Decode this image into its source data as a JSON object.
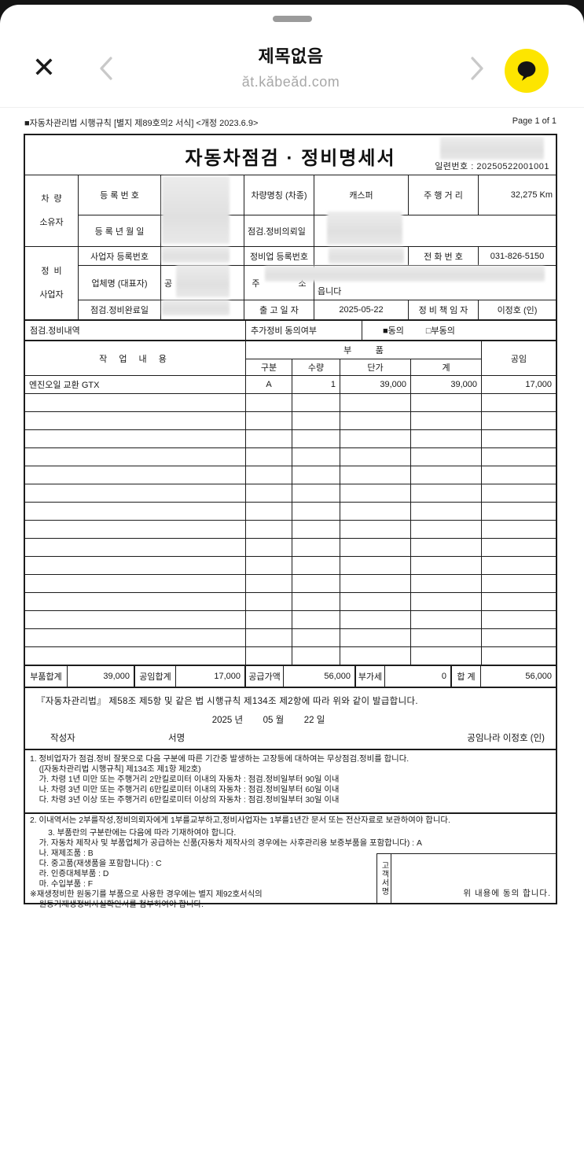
{
  "browser": {
    "title": "제목없음",
    "url": "ăt.kăbeăd.com",
    "close_glyph": "✕"
  },
  "doc": {
    "form_note": "■자동차관리법 시행규칙 [별지 제89호의2 서식] <개정 2023.6.9>",
    "page_indicator": "Page 1 of 1",
    "title": "자동차점검 · 정비명세서",
    "serial_label": "일련번호 : ",
    "serial_value": "20250522001001",
    "owner": {
      "group_label": "차  량\n소유자",
      "reg_no_label": "등 록 번 호",
      "model_label": "차량명칭 (차종)",
      "model_value": "캐스퍼",
      "mileage_label": "주 행 거 리",
      "mileage_value": "32,275 Km",
      "reg_date_label": "등 록 년 월 일",
      "request_date_label": "점검.정비의뢰일"
    },
    "shop": {
      "group_label": "정  비\n사업자",
      "biz_no_label": "사업자 등록번호",
      "repair_no_label": "정비업 등록번호",
      "phone_label": "전 화 번 호",
      "phone_value": "031-826-5150",
      "name_label": "업체명 (대표자)",
      "name_fragment": "공",
      "addr_label": "주                소",
      "addr_fragment": "읍니다",
      "complete_date_label": "점검.정비완료일",
      "out_date_label": "출 고 일 자",
      "out_date_value": "2025-05-22",
      "manager_label": "정 비 책 임 자",
      "manager_value": "이정호 (인)"
    },
    "detail_header": {
      "left": "점검.정비내역",
      "mid": "추가정비 동의여부",
      "agree": "■동의",
      "disagree": "□부동의"
    },
    "parts_table": {
      "work_label": "작 업 내 용",
      "parts_label": "부          품",
      "labor_label": "공임",
      "sub_type": "구분",
      "sub_qty": "수량",
      "sub_unit": "단가",
      "sub_total": "계",
      "row1": {
        "work": "엔진오일 교환 GTX",
        "type": "A",
        "qty": "1",
        "unit_price": "39,000",
        "total": "39,000",
        "labor": "17,000"
      },
      "empty_row_count": 15
    },
    "totals": {
      "parts_label": "부품합계",
      "parts_value": "39,000",
      "labor_label": "공임합계",
      "labor_value": "17,000",
      "supply_label": "공급가액",
      "supply_value": "56,000",
      "vat_label": "부가세",
      "vat_value": "0",
      "grand_label": "합 계",
      "grand_value": "56,000"
    },
    "certificate": {
      "line1": "『자동차관리법』  제58조 제5항 및 같은 법 시행규칙 제134조 제2항에 따라 위와 같이 발급합니다.",
      "date_line": "2025 년        05 월        22 일",
      "writer_label": "작성자",
      "sign_label": "서명",
      "shop_sign": "공임나라 이정호  (인)"
    },
    "note1": "1. 정비업자가 점검.정비 잘못으로 다음 구분에 따른 기간중 발생하는 고장등에 대하여는 무상점검.정비를 합니다.\n    ([자동차관리법 시행규칙] 제134조 제1항 제2호)\n    가. 차령 1년 미만 또는 주행거리 2만킬로미터 이내의 자동차 : 점검.정비일부터 90일 이내\n    나. 차령 3년 미만 또는 주행거리 6만킬로미터 이내의 자동차 : 점검.정비일부터 60일 이내\n    다. 차령 3년 이상 또는 주행거리 6만킬로미터 이상의 자동차 : 점검.정비일부터 30일 이내\n\n2. 이내역서는 2부를작성,정비의뢰자에게 1부를교부하고,정비사업자는 1부를1년간 문서 또는 전산자료로 보관하여야 합니다.",
    "note3": "3. 부품란의 구분란에는 다음에 따라 기재하여야 합니다.\n    가. 자동차 제작사 및 부품업체가 공급하는 신품(자동차 제작사의 경우에는 사후관리용 보증부품을 포함합니다) : A\n    나. 재제조품 : B\n    다. 중고품(재생품을 포함합니다) : C\n    라. 인증대체부품 : D\n    마. 수입부품 : F\n※재생정비한 원동기를 부품으로 사용한 경우에는 별지 제92호서식의\n    원동기재생정비사실확인서를 첨부하여야 합니다.",
    "signature": {
      "vertical_label": "고객서명",
      "agree_text": "위 내용에 동의 합니다."
    }
  },
  "colors": {
    "kakao_yellow": "#fde500",
    "border_black": "#1c1c1c"
  }
}
